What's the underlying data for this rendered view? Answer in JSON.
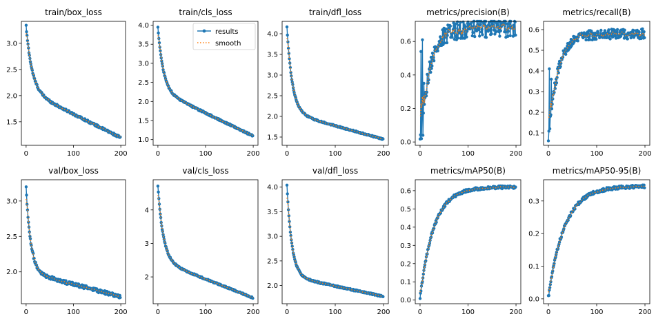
{
  "chart_data": [
    {
      "type": "line",
      "title": "train/box_loss",
      "xlim": [
        -10,
        210
      ],
      "ylim": [
        1.05,
        3.42
      ],
      "xticks": [
        0,
        100,
        200
      ],
      "yticks": [
        1.5,
        2.0,
        2.5,
        3.0
      ],
      "ytick_labels": [
        "1.5",
        "2.0",
        "2.5",
        "3.0"
      ],
      "curve": {
        "start": 3.33,
        "end": 1.17,
        "mid": 2.1,
        "k": 0.08,
        "linear_end": 1.2,
        "noise": 0.02
      },
      "legend": false
    },
    {
      "type": "line",
      "title": "train/cls_loss",
      "xlim": [
        -10,
        210
      ],
      "ylim": [
        0.85,
        4.1
      ],
      "xticks": [
        0,
        100,
        200
      ],
      "yticks": [
        1.0,
        1.5,
        2.0,
        2.5,
        3.0,
        3.5,
        4.0
      ],
      "ytick_labels": [
        "1.0",
        "1.5",
        "2.0",
        "2.5",
        "3.0",
        "3.5",
        "4.0"
      ],
      "curve": {
        "start": 3.95,
        "end": 1.0,
        "mid": 2.3,
        "k": 0.09,
        "linear_end": 1.1,
        "noise": 0.02
      },
      "legend": true,
      "legend_entries": [
        "results",
        "smooth"
      ]
    },
    {
      "type": "line",
      "title": "train/dfl_loss",
      "xlim": [
        -10,
        210
      ],
      "ylim": [
        1.3,
        4.3
      ],
      "xticks": [
        0,
        100,
        200
      ],
      "yticks": [
        1.5,
        2.0,
        2.5,
        3.0,
        3.5,
        4.0
      ],
      "ytick_labels": [
        "1.5",
        "2.0",
        "2.5",
        "3.0",
        "3.5",
        "4.0"
      ],
      "curve": {
        "start": 4.15,
        "end": 1.42,
        "mid": 2.1,
        "k": 0.09,
        "linear_end": 1.45,
        "noise": 0.015
      },
      "legend": false
    },
    {
      "type": "line",
      "title": "metrics/precision(B)",
      "xlim": [
        -10,
        210
      ],
      "ylim": [
        -0.02,
        0.72
      ],
      "xticks": [
        0,
        100,
        200
      ],
      "yticks": [
        0.0,
        0.2,
        0.4,
        0.6
      ],
      "ytick_labels": [
        "0.0",
        "0.2",
        "0.4",
        "0.6"
      ],
      "curve": {
        "start": 0.01,
        "end": 0.68,
        "mid": 0.45,
        "k": 0.05,
        "rising": true,
        "noise": 0.04
      },
      "legend": false
    },
    {
      "type": "line",
      "title": "metrics/recall(B)",
      "xlim": [
        -10,
        210
      ],
      "ylim": [
        0.04,
        0.64
      ],
      "xticks": [
        0,
        100,
        200
      ],
      "yticks": [
        0.1,
        0.2,
        0.3,
        0.4,
        0.5,
        0.6
      ],
      "ytick_labels": [
        "0.1",
        "0.2",
        "0.3",
        "0.4",
        "0.5",
        "0.6"
      ],
      "curve": {
        "start": 0.08,
        "end": 0.58,
        "mid": 0.38,
        "k": 0.05,
        "rising": true,
        "noise": 0.025
      },
      "legend": false
    },
    {
      "type": "line",
      "title": "val/box_loss",
      "xlim": [
        -10,
        210
      ],
      "ylim": [
        1.55,
        3.3
      ],
      "xticks": [
        0,
        100,
        200
      ],
      "yticks": [
        2.0,
        2.5,
        3.0
      ],
      "ytick_labels": [
        "2.0",
        "2.5",
        "3.0"
      ],
      "curve": {
        "start": 3.19,
        "end": 1.65,
        "mid": 2.0,
        "k": 0.1,
        "linear_end": 1.65,
        "noise": 0.025
      },
      "legend": false
    },
    {
      "type": "line",
      "title": "val/cls_loss",
      "xlim": [
        -10,
        210
      ],
      "ylim": [
        1.2,
        4.9
      ],
      "xticks": [
        0,
        100,
        200
      ],
      "yticks": [
        2,
        3,
        4
      ],
      "ytick_labels": [
        "2",
        "3",
        "4"
      ],
      "curve": {
        "start": 4.72,
        "end": 1.38,
        "mid": 2.5,
        "k": 0.09,
        "linear_end": 1.38,
        "noise": 0.02
      },
      "legend": false
    },
    {
      "type": "line",
      "title": "val/dfl_loss",
      "xlim": [
        -10,
        210
      ],
      "ylim": [
        1.63,
        4.15
      ],
      "xticks": [
        0,
        100,
        200
      ],
      "yticks": [
        2.0,
        2.5,
        3.0,
        3.5,
        4.0
      ],
      "ytick_labels": [
        "2.0",
        "2.5",
        "3.0",
        "3.5",
        "4.0"
      ],
      "curve": {
        "start": 4.03,
        "end": 1.78,
        "mid": 2.2,
        "k": 0.1,
        "linear_end": 1.78,
        "noise": 0.015
      },
      "legend": false
    },
    {
      "type": "line",
      "title": "metrics/mAP50(B)",
      "xlim": [
        -10,
        210
      ],
      "ylim": [
        -0.02,
        0.66
      ],
      "xticks": [
        0,
        100,
        200
      ],
      "yticks": [
        0.0,
        0.1,
        0.2,
        0.3,
        0.4,
        0.5,
        0.6
      ],
      "ytick_labels": [
        "0.0",
        "0.1",
        "0.2",
        "0.3",
        "0.4",
        "0.5",
        "0.6"
      ],
      "curve": {
        "start": 0.01,
        "end": 0.62,
        "mid": 0.4,
        "k": 0.035,
        "rising": true,
        "noise": 0.008
      },
      "legend": false
    },
    {
      "type": "line",
      "title": "metrics/mAP50-95(B)",
      "xlim": [
        -10,
        210
      ],
      "ylim": [
        -0.015,
        0.365
      ],
      "xticks": [
        0,
        100,
        200
      ],
      "yticks": [
        0.0,
        0.1,
        0.2,
        0.3
      ],
      "ytick_labels": [
        "0.0",
        "0.1",
        "0.2",
        "0.3"
      ],
      "curve": {
        "start": 0.005,
        "end": 0.345,
        "mid": 0.22,
        "k": 0.03,
        "rising": true,
        "noise": 0.005
      },
      "legend": false
    }
  ]
}
